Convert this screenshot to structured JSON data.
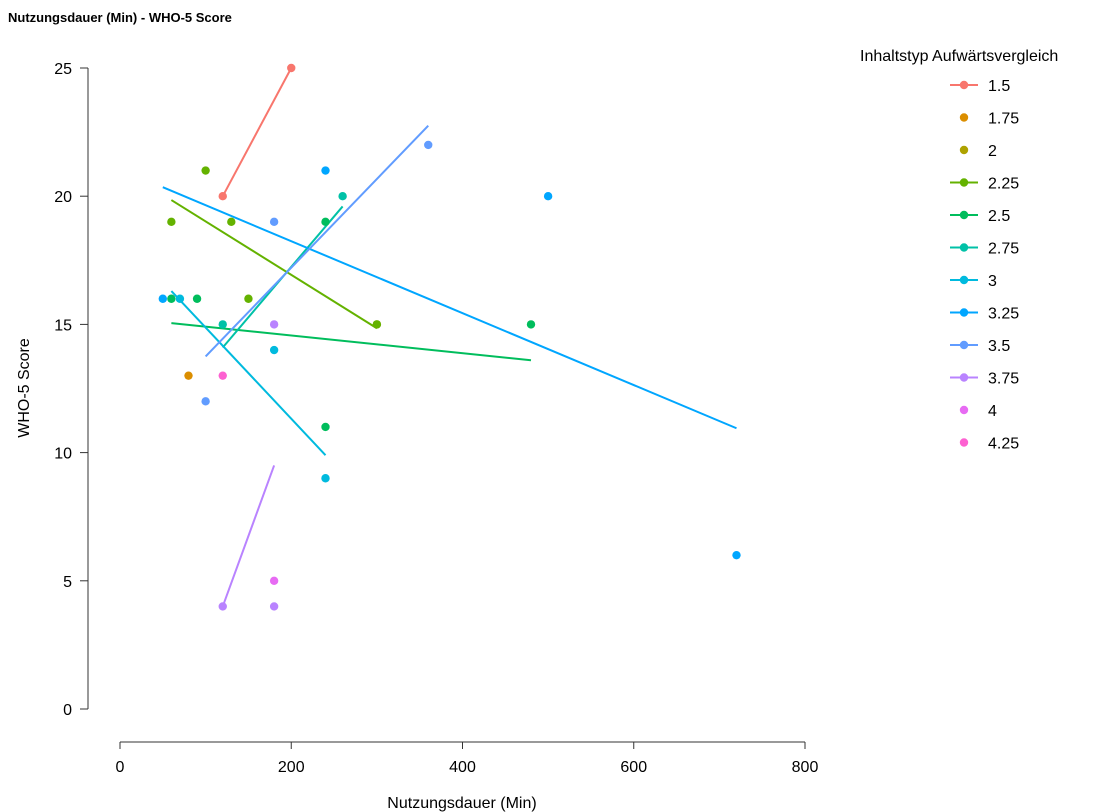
{
  "chart_data": {
    "type": "scatter",
    "title": "Nutzungsdauer (Min) - WHO-5 Score",
    "xlabel": "Nutzungsdauer (Min)",
    "ylabel": "WHO-5 Score",
    "xlim": [
      0,
      800
    ],
    "ylim": [
      0,
      25
    ],
    "xticks": [
      "0",
      "200",
      "400",
      "600",
      "800"
    ],
    "yticks": [
      "0",
      "5",
      "10",
      "15",
      "20",
      "25"
    ],
    "grid": false,
    "legend": {
      "title": "Inhaltstyp Aufwärtsvergleich",
      "position": "right"
    },
    "series": [
      {
        "name": "1.5",
        "color": "#F8766D",
        "points": [
          [
            120,
            20
          ],
          [
            200,
            25
          ]
        ],
        "trend": [
          [
            120,
            20
          ],
          [
            200,
            25
          ]
        ]
      },
      {
        "name": "1.75",
        "color": "#DB8E00",
        "points": [
          [
            80,
            13
          ]
        ],
        "trend": null
      },
      {
        "name": "2",
        "color": "#AEA200",
        "points": [
          [
            300,
            15
          ]
        ],
        "trend": null
      },
      {
        "name": "2.25",
        "color": "#64B200",
        "points": [
          [
            60,
            19
          ],
          [
            100,
            21
          ],
          [
            130,
            19
          ],
          [
            150,
            16
          ],
          [
            300,
            15
          ]
        ],
        "trend": [
          [
            60,
            19.85
          ],
          [
            300,
            14.85
          ]
        ]
      },
      {
        "name": "2.5",
        "color": "#00BD5C",
        "points": [
          [
            60,
            16
          ],
          [
            90,
            16
          ],
          [
            240,
            19
          ],
          [
            240,
            11
          ],
          [
            480,
            15
          ]
        ],
        "trend": [
          [
            60,
            15.05
          ],
          [
            480,
            13.6
          ]
        ]
      },
      {
        "name": "2.75",
        "color": "#00C1A7",
        "points": [
          [
            120,
            15
          ],
          [
            260,
            20
          ]
        ],
        "trend": [
          [
            120,
            14.1
          ],
          [
            260,
            19.6
          ]
        ]
      },
      {
        "name": "3",
        "color": "#00BADE",
        "points": [
          [
            70,
            16
          ],
          [
            180,
            14
          ],
          [
            240,
            9
          ]
        ],
        "trend": [
          [
            60,
            16.3
          ],
          [
            240,
            9.9
          ]
        ]
      },
      {
        "name": "3.25",
        "color": "#00A6FF",
        "points": [
          [
            50,
            16
          ],
          [
            240,
            21
          ],
          [
            500,
            20
          ],
          [
            720,
            6
          ]
        ],
        "trend": [
          [
            50,
            20.35
          ],
          [
            720,
            10.95
          ]
        ]
      },
      {
        "name": "3.5",
        "color": "#619CFF",
        "points": [
          [
            100,
            12
          ],
          [
            180,
            19
          ],
          [
            360,
            22
          ]
        ],
        "trend": [
          [
            100,
            13.75
          ],
          [
            360,
            22.75
          ]
        ]
      },
      {
        "name": "3.75",
        "color": "#B983FF",
        "points": [
          [
            120,
            4
          ],
          [
            180,
            15
          ],
          [
            180,
            4
          ]
        ],
        "trend": [
          [
            120,
            4
          ],
          [
            180,
            9.5
          ]
        ]
      },
      {
        "name": "4",
        "color": "#E76BF3",
        "points": [
          [
            180,
            5
          ]
        ],
        "trend": null
      },
      {
        "name": "4.25",
        "color": "#FD61D1",
        "points": [
          [
            120,
            13
          ]
        ],
        "trend": null
      }
    ]
  }
}
